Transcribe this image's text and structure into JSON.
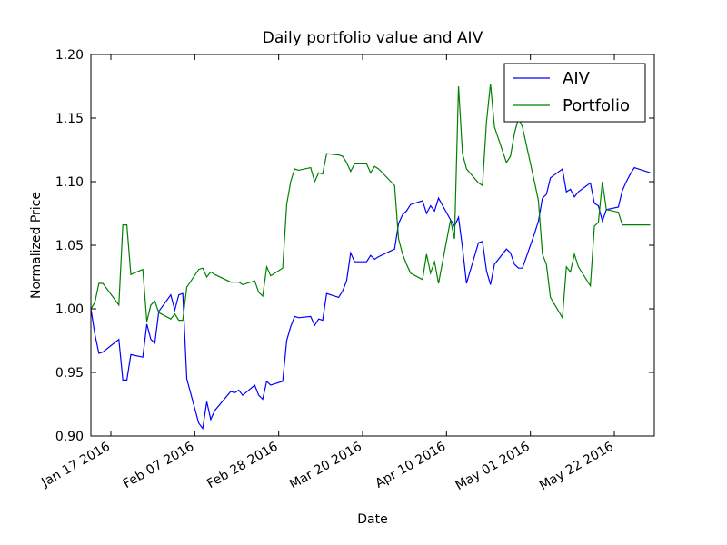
{
  "chart_data": {
    "type": "line",
    "title": "Daily portfolio value and AIV",
    "x_label": "Date",
    "y_label": "Normalized Price",
    "x": [
      "2016-01-12",
      "2016-01-13",
      "2016-01-14",
      "2016-01-15",
      "2016-01-19",
      "2016-01-20",
      "2016-01-21",
      "2016-01-22",
      "2016-01-25",
      "2016-01-26",
      "2016-01-27",
      "2016-01-28",
      "2016-01-29",
      "2016-02-01",
      "2016-02-02",
      "2016-02-03",
      "2016-02-04",
      "2016-02-05",
      "2016-02-08",
      "2016-02-09",
      "2016-02-10",
      "2016-02-11",
      "2016-02-12",
      "2016-02-16",
      "2016-02-17",
      "2016-02-18",
      "2016-02-19",
      "2016-02-22",
      "2016-02-23",
      "2016-02-24",
      "2016-02-25",
      "2016-02-26",
      "2016-02-29",
      "2016-03-01",
      "2016-03-02",
      "2016-03-03",
      "2016-03-04",
      "2016-03-07",
      "2016-03-08",
      "2016-03-09",
      "2016-03-10",
      "2016-03-11",
      "2016-03-14",
      "2016-03-15",
      "2016-03-16",
      "2016-03-17",
      "2016-03-18",
      "2016-03-21",
      "2016-03-22",
      "2016-03-23",
      "2016-03-24",
      "2016-03-28",
      "2016-03-29",
      "2016-03-30",
      "2016-03-31",
      "2016-04-01",
      "2016-04-04",
      "2016-04-05",
      "2016-04-06",
      "2016-04-07",
      "2016-04-08",
      "2016-04-11",
      "2016-04-12",
      "2016-04-13",
      "2016-04-14",
      "2016-04-15",
      "2016-04-18",
      "2016-04-19",
      "2016-04-20",
      "2016-04-21",
      "2016-04-22",
      "2016-04-25",
      "2016-04-26",
      "2016-04-27",
      "2016-04-28",
      "2016-04-29",
      "2016-05-02",
      "2016-05-03",
      "2016-05-04",
      "2016-05-05",
      "2016-05-06",
      "2016-05-09",
      "2016-05-10",
      "2016-05-11",
      "2016-05-12",
      "2016-05-13",
      "2016-05-16",
      "2016-05-17",
      "2016-05-18",
      "2016-05-19",
      "2016-05-20",
      "2016-05-23",
      "2016-05-24",
      "2016-05-25",
      "2016-05-26",
      "2016-05-27",
      "2016-05-31"
    ],
    "series": [
      {
        "name": "AIV",
        "color": "#0000ff",
        "values": [
          1.0,
          0.98,
          0.965,
          0.966,
          0.976,
          0.944,
          0.944,
          0.964,
          0.962,
          0.988,
          0.976,
          0.973,
          0.998,
          1.011,
          0.999,
          1.011,
          1.012,
          0.945,
          0.91,
          0.906,
          0.927,
          0.913,
          0.92,
          0.935,
          0.934,
          0.936,
          0.932,
          0.94,
          0.932,
          0.929,
          0.943,
          0.94,
          0.943,
          0.975,
          0.986,
          0.994,
          0.993,
          0.994,
          0.987,
          0.992,
          0.991,
          1.012,
          1.009,
          1.014,
          1.022,
          1.044,
          1.037,
          1.037,
          1.042,
          1.039,
          1.041,
          1.047,
          1.067,
          1.074,
          1.077,
          1.082,
          1.085,
          1.075,
          1.081,
          1.077,
          1.087,
          1.07,
          1.065,
          1.072,
          1.048,
          1.02,
          1.052,
          1.053,
          1.03,
          1.019,
          1.035,
          1.047,
          1.044,
          1.035,
          1.032,
          1.032,
          1.059,
          1.069,
          1.087,
          1.09,
          1.103,
          1.11,
          1.092,
          1.094,
          1.088,
          1.092,
          1.099,
          1.083,
          1.081,
          1.069,
          1.078,
          1.08,
          1.093,
          1.1,
          1.106,
          1.111,
          1.107
        ]
      },
      {
        "name": "Portfolio",
        "color": "#008000",
        "values": [
          1.0,
          1.005,
          1.02,
          1.02,
          1.003,
          1.066,
          1.066,
          1.027,
          1.031,
          0.99,
          1.003,
          1.006,
          0.997,
          0.992,
          0.996,
          0.991,
          0.991,
          1.017,
          1.031,
          1.032,
          1.025,
          1.029,
          1.027,
          1.021,
          1.021,
          1.021,
          1.019,
          1.022,
          1.013,
          1.01,
          1.033,
          1.026,
          1.032,
          1.082,
          1.1,
          1.11,
          1.109,
          1.111,
          1.1,
          1.107,
          1.106,
          1.122,
          1.121,
          1.12,
          1.115,
          1.108,
          1.114,
          1.114,
          1.107,
          1.112,
          1.11,
          1.097,
          1.055,
          1.043,
          1.035,
          1.028,
          1.023,
          1.043,
          1.028,
          1.037,
          1.02,
          1.07,
          1.055,
          1.175,
          1.122,
          1.11,
          1.099,
          1.097,
          1.147,
          1.177,
          1.143,
          1.115,
          1.12,
          1.138,
          1.15,
          1.143,
          1.1,
          1.085,
          1.043,
          1.035,
          1.009,
          0.993,
          1.033,
          1.029,
          1.043,
          1.033,
          1.018,
          1.065,
          1.068,
          1.1,
          1.078,
          1.076,
          1.066,
          1.066,
          1.066,
          1.066,
          1.066
        ]
      }
    ],
    "xlim": [
      "2016-01-12",
      "2016-06-01"
    ],
    "xticks": [
      {
        "value": "2016-01-17",
        "label": "Jan 17 2016"
      },
      {
        "value": "2016-02-07",
        "label": "Feb 07 2016"
      },
      {
        "value": "2016-02-28",
        "label": "Feb 28 2016"
      },
      {
        "value": "2016-03-20",
        "label": "Mar 20 2016"
      },
      {
        "value": "2016-04-10",
        "label": "Apr 10 2016"
      },
      {
        "value": "2016-05-01",
        "label": "May 01 2016"
      },
      {
        "value": "2016-05-22",
        "label": "May 22 2016"
      }
    ],
    "ylim": [
      0.9,
      1.2
    ],
    "yticks": [
      {
        "value": 0.9,
        "label": "0.90"
      },
      {
        "value": 0.95,
        "label": "0.95"
      },
      {
        "value": 1.0,
        "label": "1.00"
      },
      {
        "value": 1.05,
        "label": "1.05"
      },
      {
        "value": 1.1,
        "label": "1.10"
      },
      {
        "value": 1.15,
        "label": "1.15"
      },
      {
        "value": 1.2,
        "label": "1.20"
      }
    ],
    "grid": false,
    "legend": "upper right"
  }
}
